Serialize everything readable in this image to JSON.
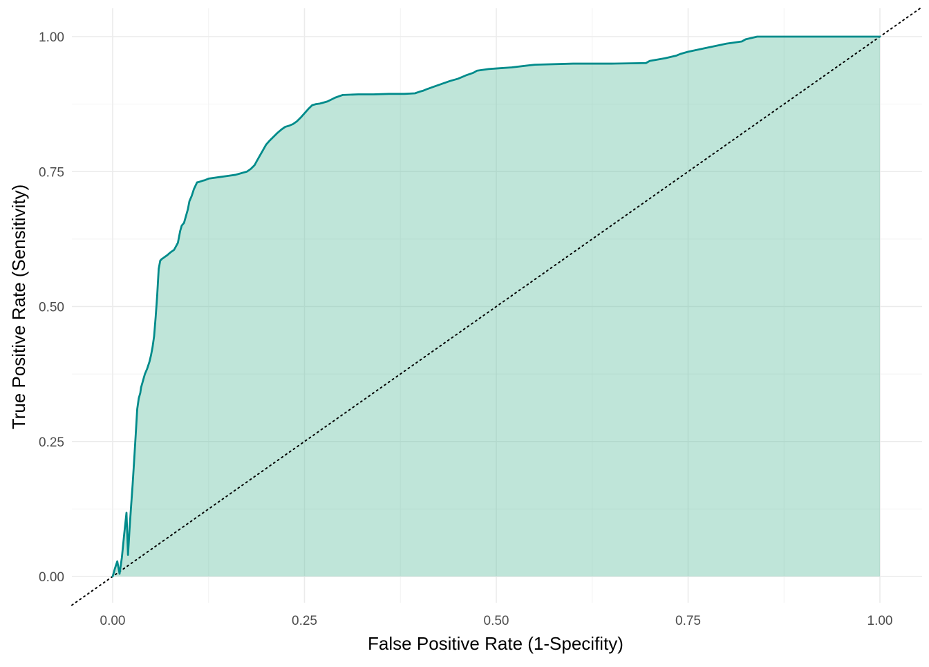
{
  "chart_data": {
    "type": "area",
    "xlabel": "False Positive Rate (1-Specifity)",
    "ylabel": "True Positive Rate (Sensitivity)",
    "xlim": [
      0,
      1
    ],
    "ylim": [
      0,
      1
    ],
    "x_ticks": [
      "0.00",
      "0.25",
      "0.50",
      "0.75",
      "1.00"
    ],
    "y_ticks": [
      "0.00",
      "0.25",
      "0.50",
      "0.75",
      "1.00"
    ],
    "grid": true,
    "legend": "none",
    "colors": {
      "line": "#008B8B",
      "fill": "#66C2A5",
      "fill_opacity": 0.42,
      "reference_line": "#000000"
    },
    "reference_line": {
      "type": "diagonal",
      "style": "dotted",
      "from": [
        0,
        0
      ],
      "to": [
        1,
        1
      ]
    },
    "series": [
      {
        "x": [
          0.0,
          0.003,
          0.006,
          0.009,
          0.012,
          0.015,
          0.018,
          0.02,
          0.022,
          0.024,
          0.026,
          0.028,
          0.03,
          0.032,
          0.034,
          0.036,
          0.037,
          0.039,
          0.04,
          0.042,
          0.045,
          0.048,
          0.05,
          0.052,
          0.054,
          0.056,
          0.058,
          0.06,
          0.062,
          0.064,
          0.066,
          0.068,
          0.071,
          0.075,
          0.08,
          0.085,
          0.088,
          0.09,
          0.093,
          0.095,
          0.098,
          0.1,
          0.103,
          0.106,
          0.11,
          0.113,
          0.117,
          0.12,
          0.125,
          0.13,
          0.14,
          0.15,
          0.16,
          0.165,
          0.17,
          0.175,
          0.18,
          0.185,
          0.188,
          0.192,
          0.196,
          0.2,
          0.205,
          0.21,
          0.215,
          0.22,
          0.225,
          0.23,
          0.235,
          0.24,
          0.245,
          0.25,
          0.255,
          0.26,
          0.265,
          0.27,
          0.28,
          0.29,
          0.3,
          0.32,
          0.34,
          0.36,
          0.38,
          0.394,
          0.4,
          0.405,
          0.41,
          0.42,
          0.43,
          0.44,
          0.45,
          0.46,
          0.47,
          0.475,
          0.49,
          0.5,
          0.52,
          0.55,
          0.6,
          0.65,
          0.695,
          0.7,
          0.72,
          0.735,
          0.74,
          0.75,
          0.76,
          0.77,
          0.79,
          0.8,
          0.82,
          0.825,
          0.84,
          0.9,
          0.95,
          1.0
        ],
        "y": [
          0.0,
          0.015,
          0.028,
          0.005,
          0.035,
          0.078,
          0.118,
          0.04,
          0.088,
          0.13,
          0.17,
          0.215,
          0.262,
          0.31,
          0.33,
          0.34,
          0.35,
          0.36,
          0.365,
          0.375,
          0.385,
          0.398,
          0.41,
          0.425,
          0.445,
          0.48,
          0.52,
          0.57,
          0.585,
          0.588,
          0.59,
          0.592,
          0.595,
          0.6,
          0.605,
          0.618,
          0.64,
          0.65,
          0.655,
          0.665,
          0.68,
          0.695,
          0.705,
          0.718,
          0.73,
          0.731,
          0.733,
          0.734,
          0.737,
          0.738,
          0.74,
          0.742,
          0.744,
          0.746,
          0.748,
          0.75,
          0.755,
          0.762,
          0.77,
          0.78,
          0.79,
          0.8,
          0.808,
          0.815,
          0.822,
          0.828,
          0.833,
          0.835,
          0.838,
          0.843,
          0.85,
          0.858,
          0.866,
          0.873,
          0.875,
          0.876,
          0.88,
          0.887,
          0.892,
          0.893,
          0.893,
          0.894,
          0.894,
          0.895,
          0.898,
          0.9,
          0.903,
          0.908,
          0.913,
          0.918,
          0.922,
          0.928,
          0.933,
          0.937,
          0.94,
          0.941,
          0.943,
          0.948,
          0.95,
          0.95,
          0.951,
          0.955,
          0.96,
          0.965,
          0.968,
          0.972,
          0.975,
          0.978,
          0.984,
          0.987,
          0.991,
          0.995,
          1.0,
          1.0,
          1.0,
          1.0
        ]
      }
    ]
  }
}
